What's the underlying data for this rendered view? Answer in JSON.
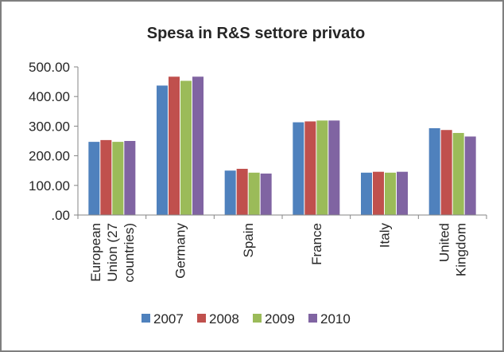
{
  "chart_data": {
    "type": "bar",
    "title": "Spesa in R&S settore privato",
    "xlabel": "",
    "ylabel": "",
    "ylim": [
      0,
      500
    ],
    "yticks": [
      0,
      100,
      200,
      300,
      400,
      500
    ],
    "ytick_labels": [
      ".00",
      "100.00",
      "200.00",
      "300.00",
      "400.00",
      "500.00"
    ],
    "grid": false,
    "legend_position": "bottom",
    "categories": [
      [
        "European",
        "Union (27",
        "countries)"
      ],
      [
        "Germany"
      ],
      [
        "Spain"
      ],
      [
        "France"
      ],
      [
        "Italy"
      ],
      [
        "United",
        "Kingdom"
      ]
    ],
    "series": [
      {
        "name": "2007",
        "color": "#4f81bd",
        "values": [
          247,
          437,
          150,
          313,
          143,
          293
        ]
      },
      {
        "name": "2008",
        "color": "#c0504d",
        "values": [
          253,
          467,
          156,
          316,
          146,
          287
        ]
      },
      {
        "name": "2009",
        "color": "#9bbb59",
        "values": [
          247,
          453,
          143,
          319,
          143,
          277
        ]
      },
      {
        "name": "2010",
        "color": "#8064a2",
        "values": [
          250,
          467,
          140,
          319,
          146,
          265
        ]
      }
    ]
  }
}
